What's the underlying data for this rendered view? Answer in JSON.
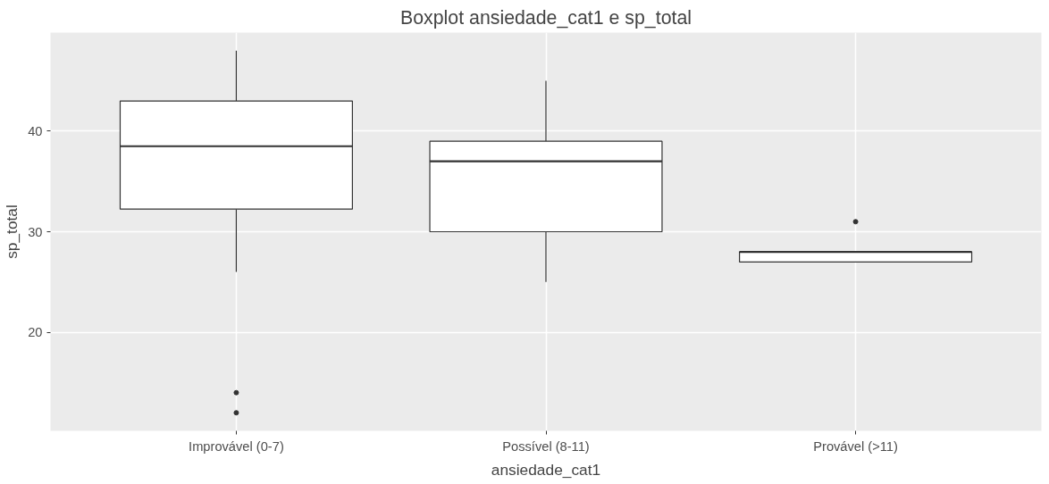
{
  "chart_data": {
    "type": "box",
    "title": "Boxplot ansiedade_cat1 e sp_total",
    "xlabel": "ansiedade_cat1",
    "ylabel": "sp_total",
    "categories": [
      "Improvável (0-7)",
      "Possível (8-11)",
      "Provável (>11)"
    ],
    "boxes": [
      {
        "low": 26,
        "q1": 32.25,
        "median": 38.5,
        "q3": 43,
        "high": 48,
        "outliers": [
          14,
          12
        ]
      },
      {
        "low": 25,
        "q1": 30,
        "median": 37,
        "q3": 39,
        "high": 45
      },
      {
        "low": 27,
        "q1": 27,
        "median": 28,
        "q3": 28,
        "high": 28,
        "outliers": [
          31
        ]
      }
    ],
    "ylim": [
      10.2,
      49.8
    ],
    "yticks": [
      20,
      30,
      40
    ],
    "grid": true
  }
}
